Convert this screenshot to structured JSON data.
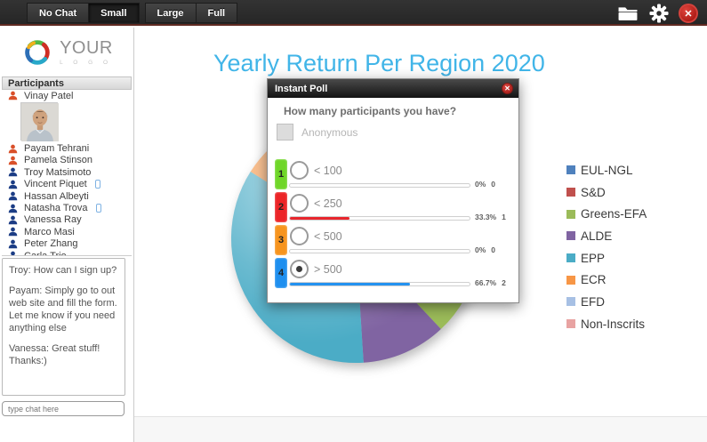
{
  "toolbar": {
    "buttons": [
      {
        "label": "No Chat",
        "active": false
      },
      {
        "label": "Small",
        "active": true
      },
      {
        "label": "Large",
        "active": false
      },
      {
        "label": "Full",
        "active": false
      }
    ],
    "icons": {
      "folder": "folder-icon",
      "settings": "gear-icon",
      "close": "close-icon"
    }
  },
  "logo": {
    "word": "YOUR",
    "sub": "L O G O"
  },
  "sidebar": {
    "participants_header": "Participants",
    "participants": [
      {
        "name": "Vinay Patel",
        "color": "orange",
        "photo": true,
        "phone": false
      },
      {
        "name": "Payam Tehrani",
        "color": "orange",
        "photo": false,
        "phone": false
      },
      {
        "name": "Pamela Stinson",
        "color": "orange",
        "photo": false,
        "phone": false
      },
      {
        "name": "Troy Matsimoto",
        "color": "blue",
        "photo": false,
        "phone": false
      },
      {
        "name": "Vincent Piquet",
        "color": "blue",
        "photo": false,
        "phone": true
      },
      {
        "name": "Hassan Albeyti",
        "color": "blue",
        "photo": false,
        "phone": false
      },
      {
        "name": "Natasha Trova",
        "color": "blue",
        "photo": false,
        "phone": true
      },
      {
        "name": "Vanessa Ray",
        "color": "blue",
        "photo": false,
        "phone": false
      },
      {
        "name": "Marco Masi",
        "color": "blue",
        "photo": false,
        "phone": false
      },
      {
        "name": "Peter Zhang",
        "color": "blue",
        "photo": false,
        "phone": false
      },
      {
        "name": "Carla Trio",
        "color": "blue",
        "photo": false,
        "phone": false
      }
    ],
    "chat_messages": [
      {
        "text": "Troy: How can I sign up?"
      },
      {
        "text": "Payam: Simply go to out web site and fill the form. Let me know if you need anything else"
      },
      {
        "text": "Vanessa: Great stuff! Thanks:)"
      }
    ],
    "chat_input_placeholder": "type chat here"
  },
  "main": {
    "title": "Yearly Return Per Region 2020"
  },
  "poll": {
    "title": "Instant Poll",
    "question": "How many participants you have?",
    "anonymous_label": "Anonymous",
    "options": [
      {
        "number": "1",
        "label": "< 100",
        "box_color": "#6fd628",
        "percent": "0%",
        "count": "0",
        "fill": 0,
        "fill_color": "#e8262d",
        "selected": false
      },
      {
        "number": "2",
        "label": "< 250",
        "box_color": "#ec2427",
        "percent": "33.3%",
        "count": "1",
        "fill": 33.3,
        "fill_color": "#e8262d",
        "selected": false
      },
      {
        "number": "3",
        "label": "< 500",
        "box_color": "#f7941e",
        "percent": "0%",
        "count": "0",
        "fill": 0,
        "fill_color": "#e8262d",
        "selected": false
      },
      {
        "number": "4",
        "label": "> 500",
        "box_color": "#1e8fef",
        "percent": "66.7%",
        "count": "2",
        "fill": 66.7,
        "fill_color": "#2492f0",
        "selected": true
      }
    ]
  },
  "chart_data": {
    "type": "pie",
    "title": "Yearly Return Per Region 2020",
    "labels": [
      "EUL-NGL",
      "S&D",
      "Greens-EFA",
      "ALDE",
      "EPP",
      "ECR",
      "EFD",
      "Non-Inscrits"
    ],
    "values": [
      13,
      15,
      10,
      11,
      35,
      4,
      6,
      6
    ],
    "colors": [
      "#4f81bd",
      "#c0504d",
      "#9bbb59",
      "#8064a2",
      "#4bacc6",
      "#f79646",
      "#a7c0e4",
      "#e8a3a2"
    ],
    "legend_position": "right"
  }
}
